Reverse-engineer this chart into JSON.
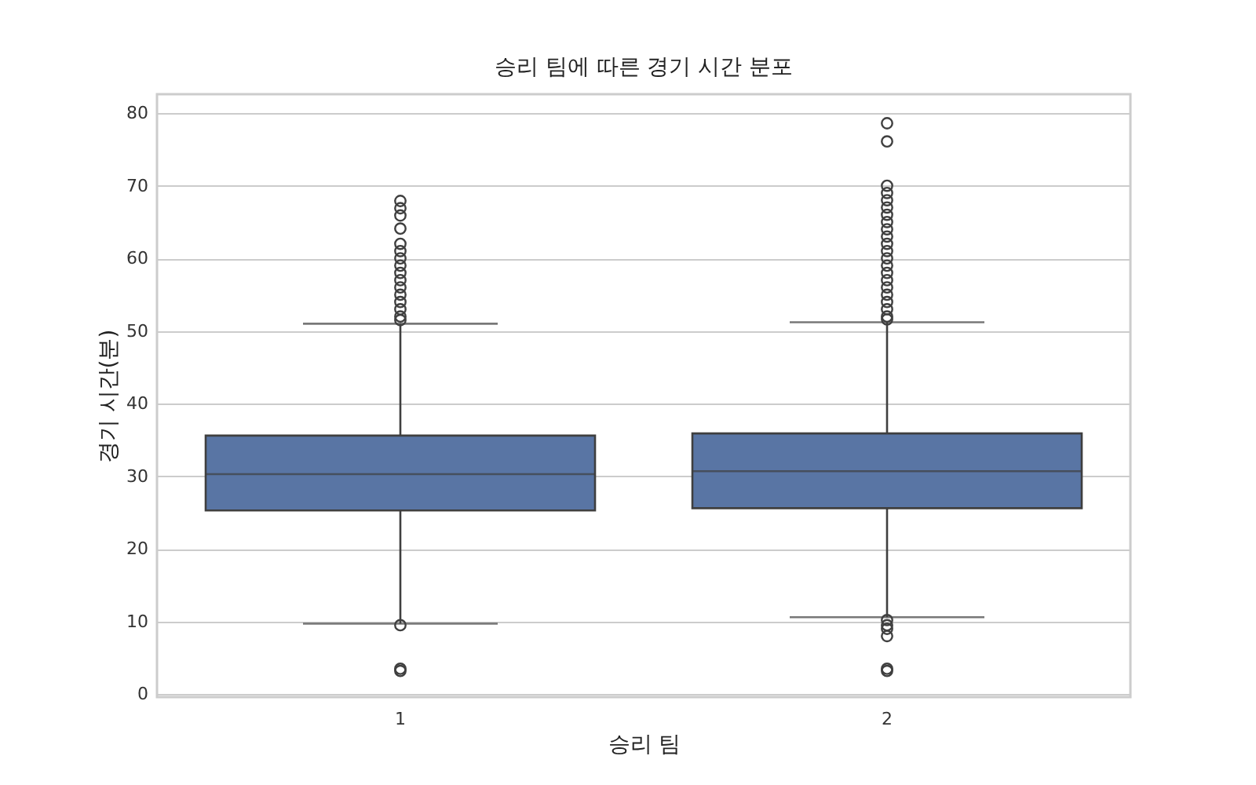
{
  "chart_data": {
    "type": "box",
    "title": "승리 팀에 따른 경기 시간 분포",
    "xlabel": "승리 팀",
    "ylabel": "경기 시간(분)",
    "categories": [
      "1",
      "2"
    ],
    "color": "#5975a4",
    "ylim": [
      -0.4,
      82.6
    ],
    "yticks": [
      0,
      10,
      20,
      30,
      40,
      50,
      60,
      70,
      80
    ],
    "grid": "y",
    "marker": "circle",
    "boxes": [
      {
        "low": 9.7,
        "q1": 25.3,
        "median": 30.3,
        "q3": 35.6,
        "high": 51.0,
        "outliers": [
          3.2,
          3.5,
          9.5,
          51.5,
          52,
          53,
          54,
          55,
          56,
          57,
          58,
          59,
          60,
          61,
          62,
          64.1,
          65.9,
          66.9,
          67.9
        ]
      },
      {
        "low": 10.6,
        "q1": 25.6,
        "median": 30.7,
        "q3": 35.9,
        "high": 51.2,
        "outliers": [
          3.2,
          3.5,
          8.0,
          9.0,
          9.5,
          10.2,
          51.6,
          52,
          53,
          54,
          55,
          56,
          57,
          58,
          59,
          60,
          61,
          62,
          63,
          64,
          65,
          66,
          67,
          68,
          69,
          70,
          76.1,
          78.6
        ]
      }
    ]
  }
}
